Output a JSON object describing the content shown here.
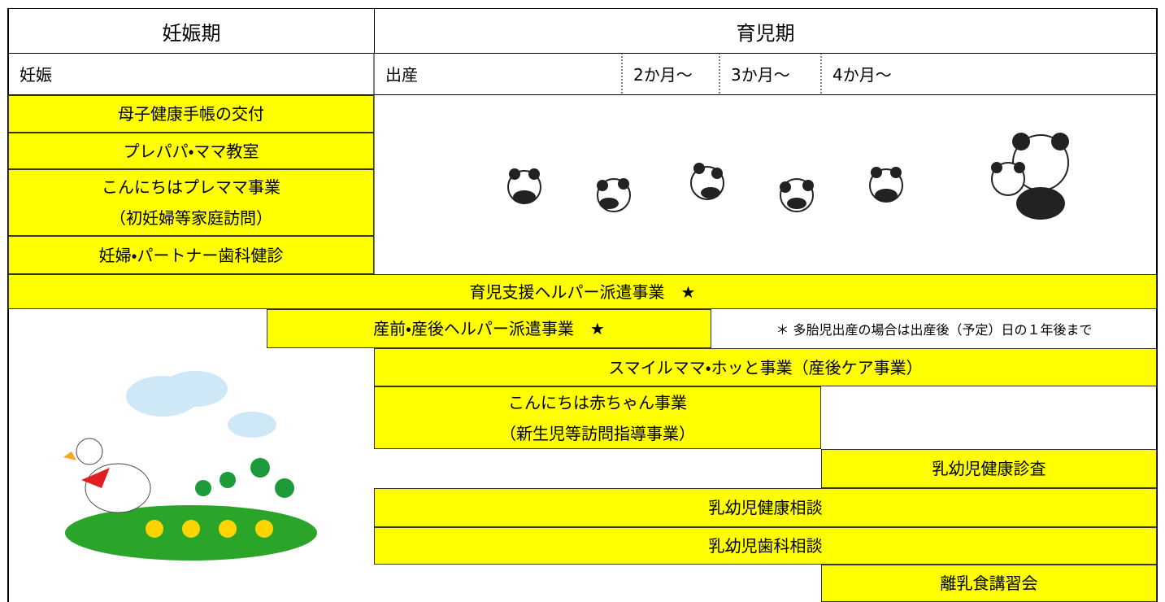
{
  "header": {
    "pregnancy_period": "妊娠期",
    "childcare_period": "育児期"
  },
  "stages": [
    "妊娠",
    "出産",
    "2か月～",
    "3か月～",
    "4か月～"
  ],
  "services": [
    {
      "lines": [
        "母子健康手帳の交付"
      ]
    },
    {
      "lines": [
        "プレパパ・ママ教室"
      ]
    },
    {
      "lines": [
        "こんにちはプレママ事業",
        "（初妊婦等家庭訪問）"
      ]
    },
    {
      "lines": [
        "妊婦・パートナー歯科健診"
      ]
    },
    {
      "lines": [
        "育児支援ヘルパー派遣事業　★"
      ]
    },
    {
      "lines": [
        "産前・産後ヘルパー派遣事業　★"
      ]
    },
    {
      "lines": [
        "スマイルママ・ホッと事業（産後ケア事業）"
      ]
    },
    {
      "lines": [
        "こんにちは赤ちゃん事業",
        "（新生児等訪問指導事業）"
      ]
    },
    {
      "lines": [
        "乳幼児健康診査"
      ]
    },
    {
      "lines": [
        "乳幼児健康相談"
      ]
    },
    {
      "lines": [
        "乳幼児歯科相談"
      ]
    },
    {
      "lines": [
        "離乳食講習会"
      ]
    }
  ],
  "note": "＊ 多胎児出産の場合は出産後（予定）日の１年後まで"
}
